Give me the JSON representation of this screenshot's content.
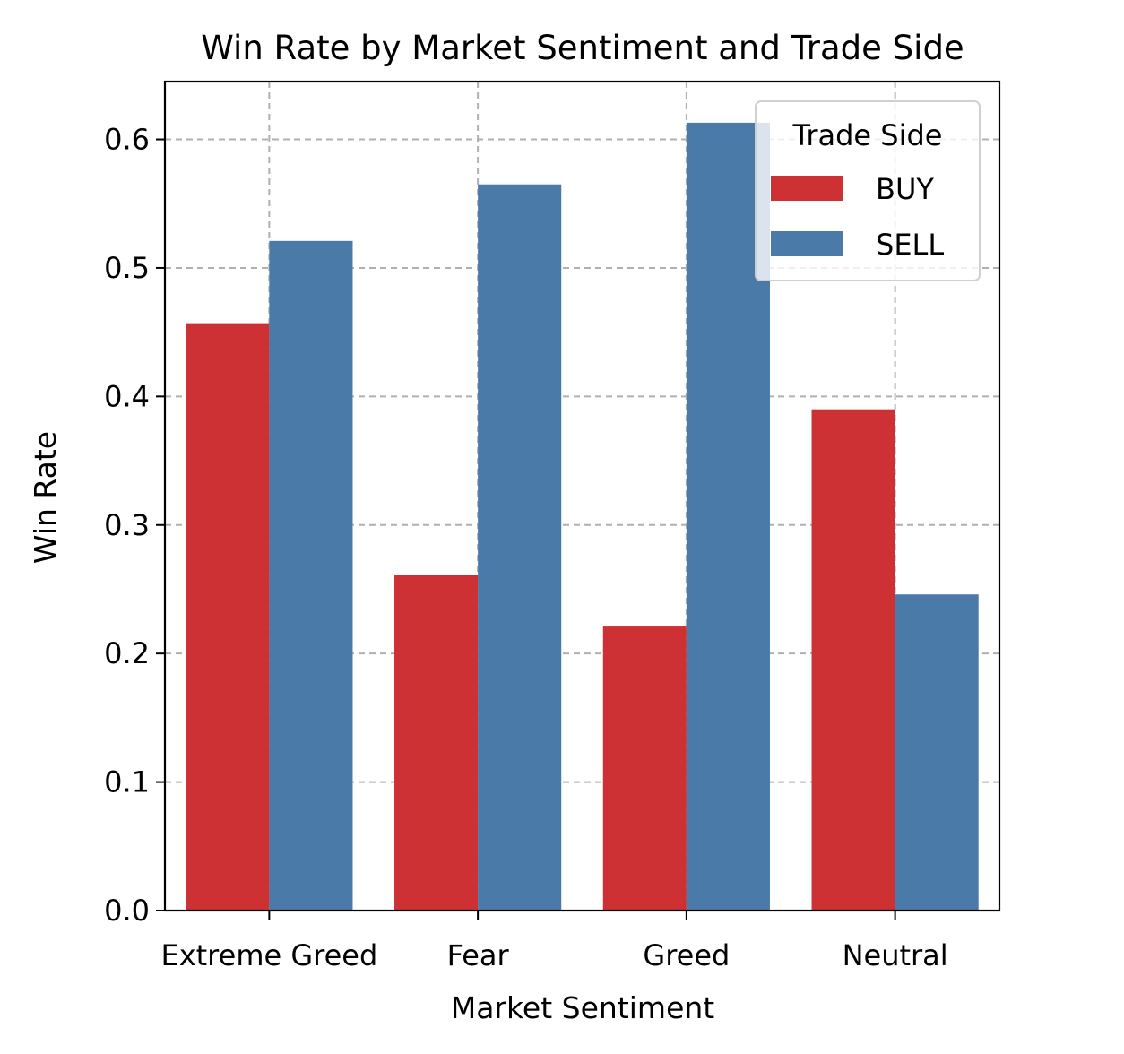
{
  "chart_data": {
    "type": "bar",
    "title": "Win Rate by Market Sentiment and Trade Side",
    "xlabel": "Market Sentiment",
    "ylabel": "Win Rate",
    "categories": [
      "Extreme Greed",
      "Fear",
      "Greed",
      "Neutral"
    ],
    "series": [
      {
        "name": "BUY",
        "color": "#cd3133",
        "values": [
          0.457,
          0.261,
          0.221,
          0.39
        ]
      },
      {
        "name": "SELL",
        "color": "#4a7ba8",
        "values": [
          0.521,
          0.565,
          0.613,
          0.246
        ]
      }
    ],
    "ylim": [
      0.0,
      0.645
    ],
    "yticks": [
      0.0,
      0.1,
      0.2,
      0.3,
      0.4,
      0.5,
      0.6
    ],
    "ytick_labels": [
      "0.0",
      "0.1",
      "0.2",
      "0.3",
      "0.4",
      "0.5",
      "0.6"
    ],
    "grid": true,
    "grid_style": "dashed",
    "legend": {
      "title": "Trade Side",
      "placement": "top-right"
    }
  }
}
